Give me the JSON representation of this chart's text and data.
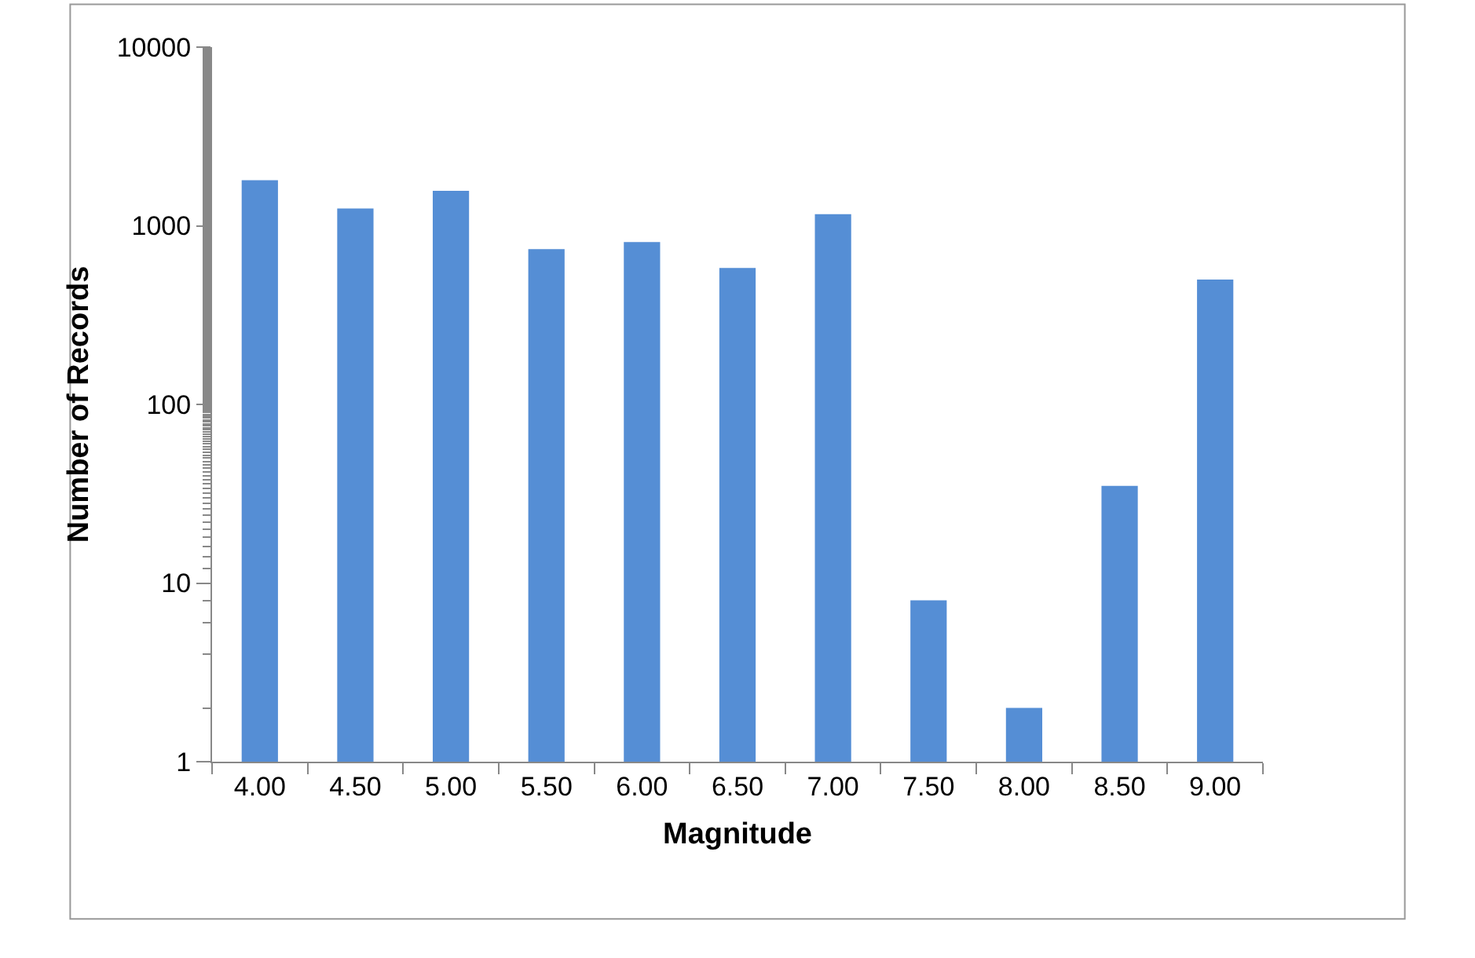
{
  "chart_data": {
    "type": "bar",
    "xlabel": "Magnitude",
    "ylabel": "Number of Records",
    "categories": [
      "4.00",
      "4.50",
      "5.00",
      "5.50",
      "6.00",
      "6.50",
      "7.00",
      "7.50",
      "8.00",
      "8.50",
      "9.00"
    ],
    "values": [
      1800,
      1250,
      1570,
      740,
      810,
      580,
      1160,
      8,
      2,
      35,
      500
    ],
    "color": "#558ed5",
    "log": "y",
    "ylim": [
      1,
      10000
    ],
    "yticks": [
      1,
      10,
      100,
      1000,
      10000
    ],
    "grid": false,
    "legend": false
  }
}
